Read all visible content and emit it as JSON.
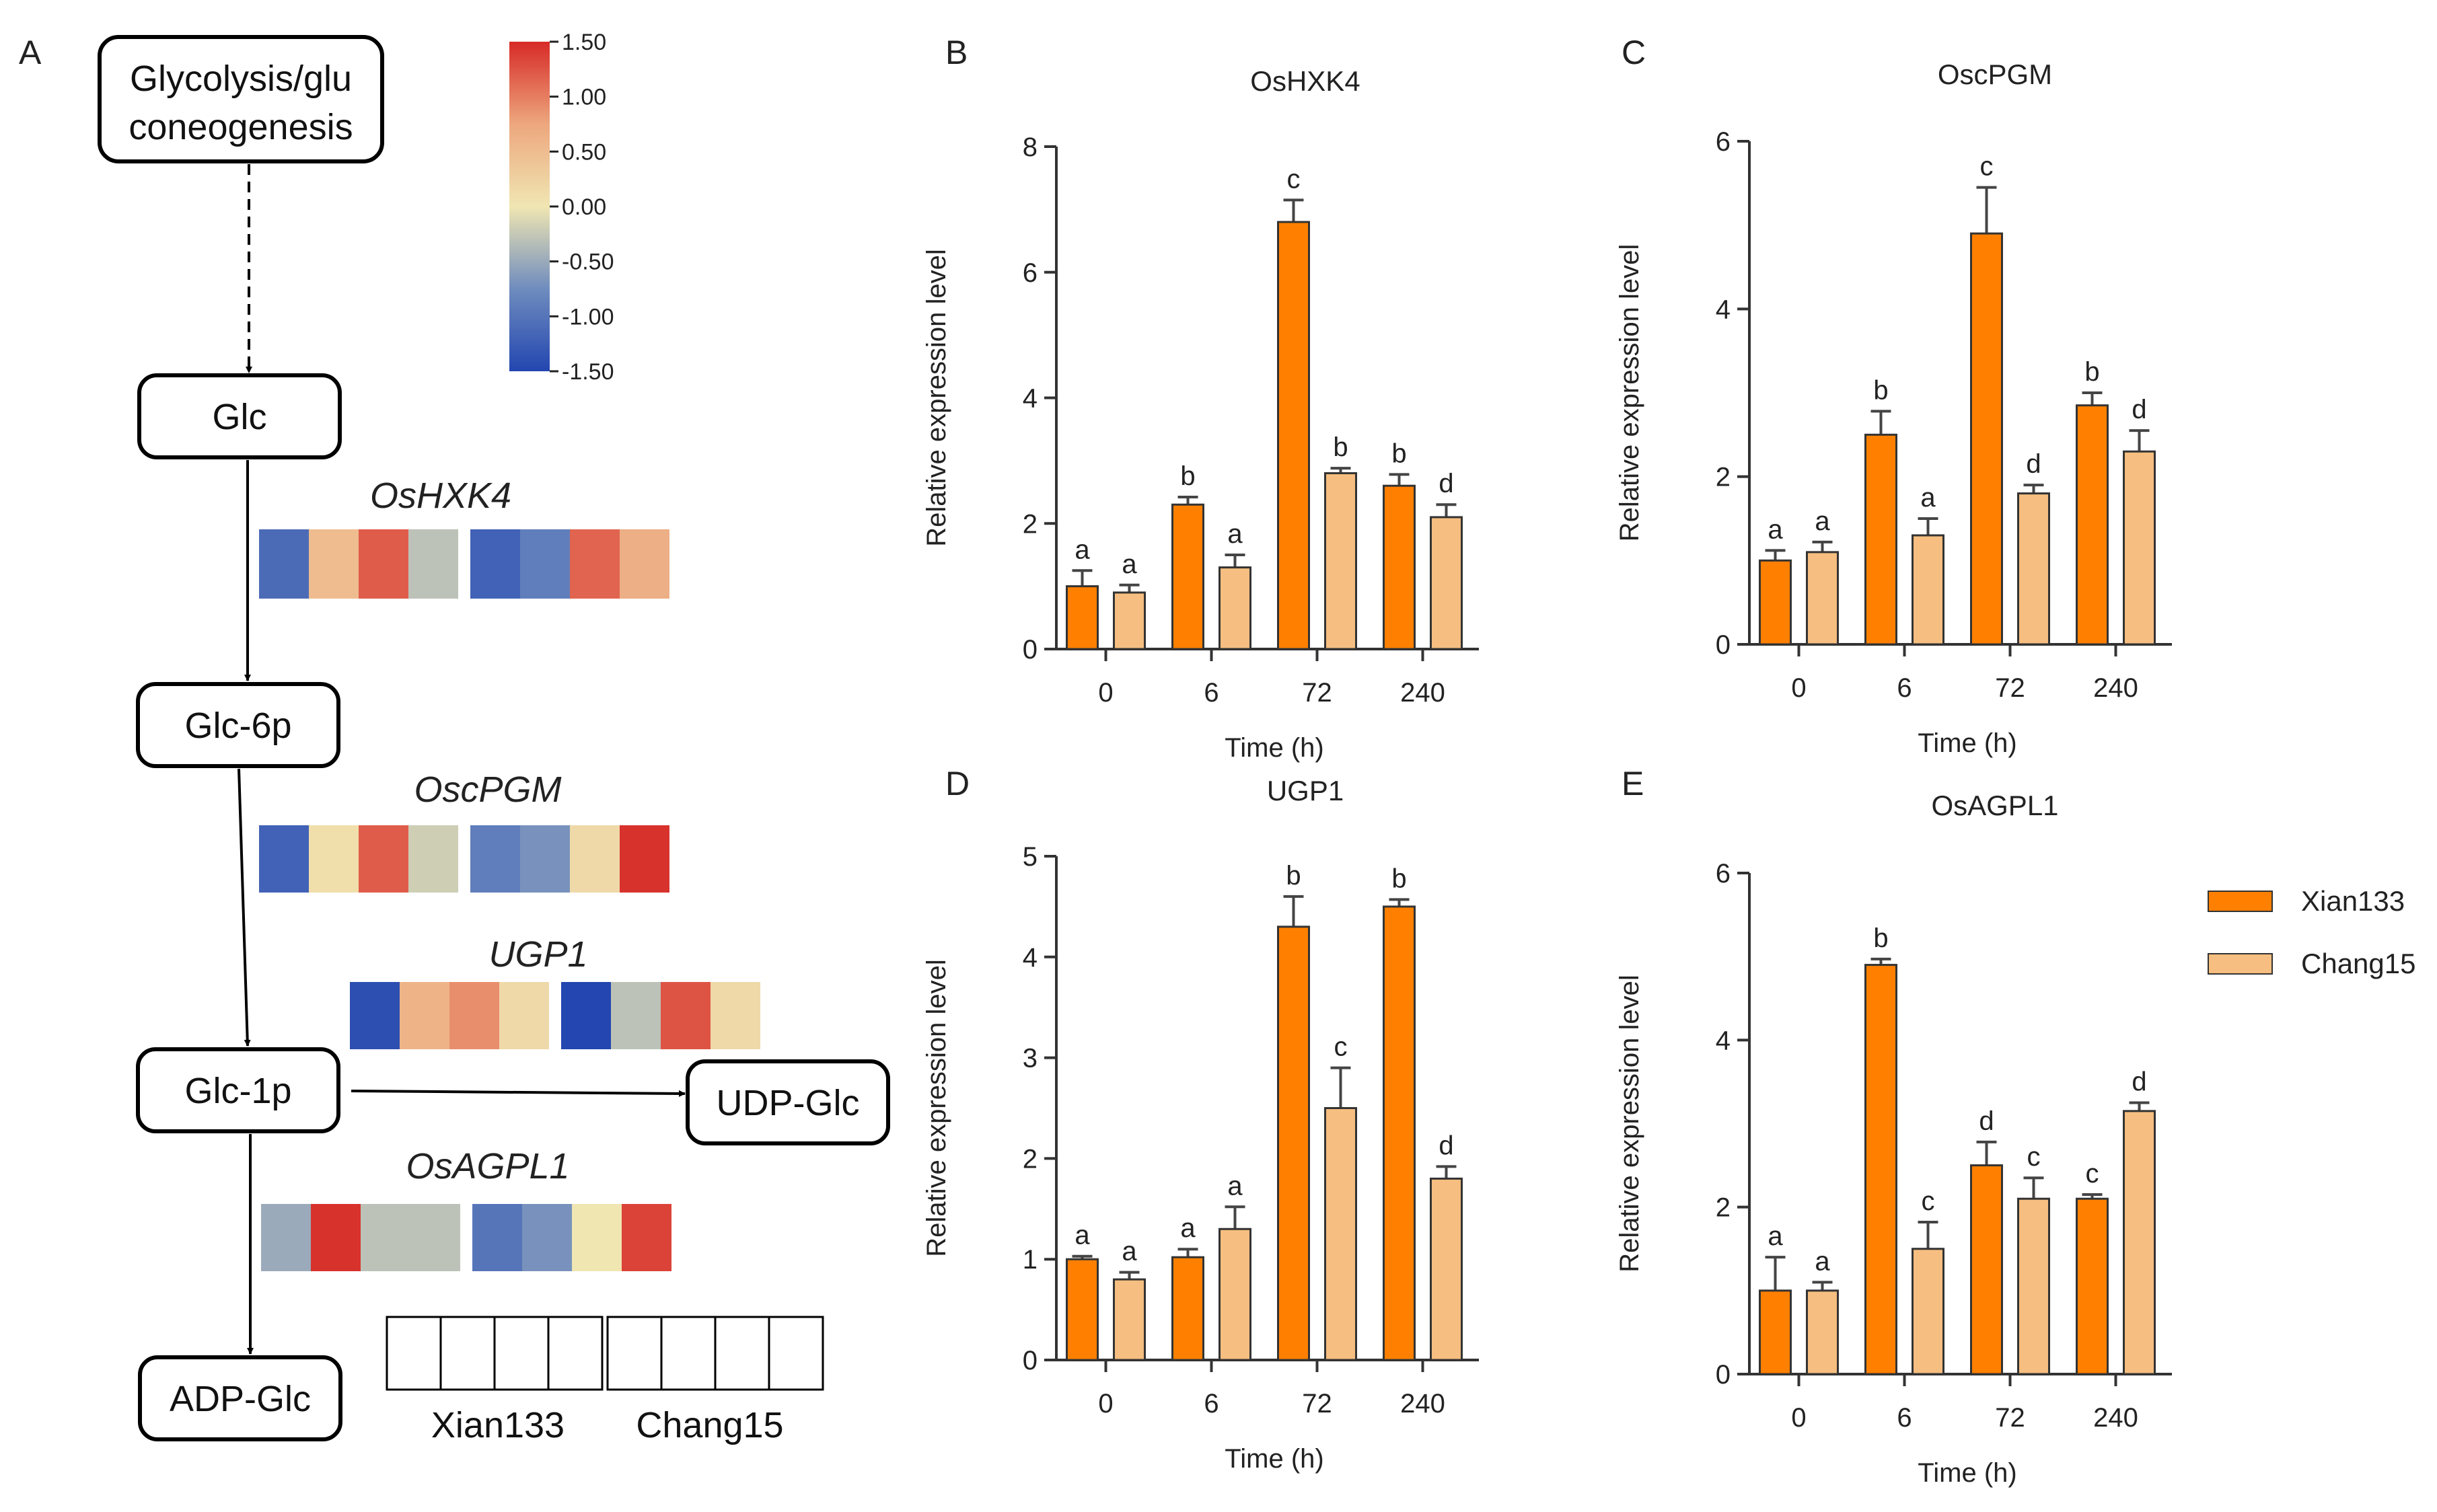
{
  "colors": {
    "xian": "#FF8000",
    "chang": "#F6BE80",
    "heat_low": "#2346B0",
    "heat_mid": "#F0E6B2",
    "heat_high": "#D72A27"
  },
  "panel_a": {
    "letter": "A",
    "nodes": {
      "glycolysis": [
        "Glycolysis/glu",
        "coneogenesis"
      ],
      "glc": "Glc",
      "glc6p": "Glc-6p",
      "glc1p": "Glc-1p",
      "udpglc": "UDP-Glc",
      "adpglc": "ADP-Glc"
    },
    "colorbar": {
      "min": -1.5,
      "max": 1.5,
      "ticks": [
        "1.50",
        "1.00",
        "0.50",
        "0.00",
        "-0.50",
        "-1.00",
        "-1.50"
      ]
    },
    "heatmaps": [
      {
        "gene": "OsHXK4",
        "values": [
          -1.1,
          0.5,
          1.2,
          -0.3,
          -1.2,
          -0.9,
          1.15,
          0.65
        ]
      },
      {
        "gene": "OscPGM",
        "values": [
          -1.2,
          0.1,
          1.2,
          -0.2,
          -0.9,
          -0.7,
          0.15,
          1.45
        ]
      },
      {
        "gene": "UGP1",
        "values": [
          -1.4,
          0.6,
          0.9,
          0.15,
          -1.5,
          -0.3,
          1.25,
          0.15
        ]
      },
      {
        "gene": "OsAGPL1",
        "values": [
          -0.5,
          1.45,
          -0.3,
          -0.3,
          -1.0,
          -0.7,
          0.0,
          1.35
        ]
      }
    ],
    "sample_labels": [
      "Xian133",
      "Chang15"
    ]
  },
  "chart_data": [
    {
      "panel": "B",
      "type": "bar",
      "title": "OsHXK4",
      "xlabel": "Time (h)",
      "ylabel": "Relative expression level",
      "categories": [
        "0",
        "6",
        "72",
        "240"
      ],
      "ylim": [
        0,
        8
      ],
      "yticks": [
        0,
        2,
        4,
        6,
        8
      ],
      "series": [
        {
          "name": "Xian133",
          "values": [
            1.0,
            2.3,
            6.8,
            2.6
          ],
          "errors": [
            0.25,
            0.12,
            0.35,
            0.18
          ],
          "letters": [
            "a",
            "b",
            "c",
            "b"
          ]
        },
        {
          "name": "Chang15",
          "values": [
            0.9,
            1.3,
            2.8,
            2.1
          ],
          "errors": [
            0.12,
            0.2,
            0.08,
            0.2
          ],
          "letters": [
            "a",
            "a",
            "b",
            "d"
          ]
        }
      ]
    },
    {
      "panel": "C",
      "type": "bar",
      "title": "OscPGM",
      "xlabel": "Time (h)",
      "ylabel": "Relative expression level",
      "categories": [
        "0",
        "6",
        "72",
        "240"
      ],
      "ylim": [
        0,
        6
      ],
      "yticks": [
        0,
        2,
        4,
        6
      ],
      "series": [
        {
          "name": "Xian133",
          "values": [
            1.0,
            2.5,
            4.9,
            2.85
          ],
          "errors": [
            0.12,
            0.28,
            0.55,
            0.15
          ],
          "letters": [
            "a",
            "b",
            "c",
            "b"
          ]
        },
        {
          "name": "Chang15",
          "values": [
            1.1,
            1.3,
            1.8,
            2.3
          ],
          "errors": [
            0.12,
            0.2,
            0.1,
            0.25
          ],
          "letters": [
            "a",
            "a",
            "d",
            "d"
          ]
        }
      ]
    },
    {
      "panel": "D",
      "type": "bar",
      "title": "UGP1",
      "xlabel": "Time (h)",
      "ylabel": "Relative expression level",
      "categories": [
        "0",
        "6",
        "72",
        "240"
      ],
      "ylim": [
        0,
        5
      ],
      "yticks": [
        0,
        1,
        2,
        3,
        4,
        5
      ],
      "series": [
        {
          "name": "Xian133",
          "values": [
            1.0,
            1.02,
            4.3,
            4.5
          ],
          "errors": [
            0.03,
            0.08,
            0.3,
            0.07
          ],
          "letters": [
            "a",
            "a",
            "b",
            "b"
          ]
        },
        {
          "name": "Chang15",
          "values": [
            0.8,
            1.3,
            2.5,
            1.8
          ],
          "errors": [
            0.07,
            0.22,
            0.4,
            0.12
          ],
          "letters": [
            "a",
            "a",
            "c",
            "d"
          ]
        }
      ]
    },
    {
      "panel": "E",
      "type": "bar",
      "title": "OsAGPL1",
      "xlabel": "Time (h)",
      "ylabel": "Relative expression level",
      "categories": [
        "0",
        "6",
        "72",
        "240"
      ],
      "ylim": [
        0,
        6
      ],
      "yticks": [
        0,
        2,
        4,
        6
      ],
      "series": [
        {
          "name": "Xian133",
          "values": [
            1.0,
            4.9,
            2.5,
            2.1
          ],
          "errors": [
            0.4,
            0.07,
            0.28,
            0.05
          ],
          "letters": [
            "a",
            "b",
            "d",
            "c"
          ]
        },
        {
          "name": "Chang15",
          "values": [
            1.0,
            1.5,
            2.1,
            3.15
          ],
          "errors": [
            0.1,
            0.32,
            0.25,
            0.1
          ],
          "letters": [
            "a",
            "c",
            "c",
            "d"
          ]
        }
      ]
    }
  ],
  "legend": {
    "items": [
      "Xian133",
      "Chang15"
    ]
  }
}
